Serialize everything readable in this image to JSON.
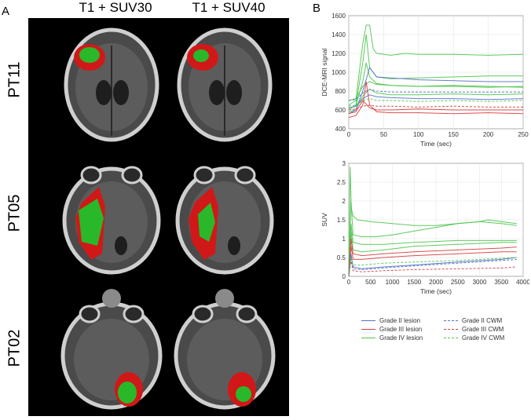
{
  "panels": {
    "a": "A",
    "b": "B"
  },
  "columns": [
    "T1 + SUV30",
    "T1 + SUV40"
  ],
  "rows": [
    "PT11",
    "PT05",
    "PT02"
  ],
  "colors": {
    "grade2": "#5470c6",
    "grade3": "#d63c3c",
    "grade4": "#4cc44c",
    "tumor_red": "#d11818",
    "tumor_green": "#29b829"
  },
  "legend": [
    {
      "label": "Grade II lesion",
      "color": "#5470c6",
      "style": "solid"
    },
    {
      "label": "Grade III lesion",
      "color": "#d63c3c",
      "style": "solid"
    },
    {
      "label": "Grade IV lesion",
      "color": "#4cc44c",
      "style": "solid"
    },
    {
      "label": "Grade II CWM",
      "color": "#5470c6",
      "style": "dashed"
    },
    {
      "label": "Grade III CWM",
      "color": "#d63c3c",
      "style": "dashed"
    },
    {
      "label": "Grade IV CWM",
      "color": "#4cc44c",
      "style": "dashed"
    }
  ],
  "chart_data": [
    {
      "type": "line",
      "xlabel": "Time (sec)",
      "ylabel": "DCE-MRI signal",
      "xlim": [
        0,
        250
      ],
      "ylim": [
        400,
        1600
      ],
      "xticks": [
        0,
        50,
        100,
        150,
        200,
        250
      ],
      "yticks": [
        400,
        600,
        800,
        1000,
        1200,
        1400,
        1600
      ],
      "grid": true,
      "series": [
        {
          "grade": "IV",
          "kind": "lesion",
          "x": [
            0,
            10,
            20,
            25,
            30,
            35,
            40,
            60,
            80,
            100,
            150,
            200,
            250
          ],
          "y": [
            650,
            700,
            1300,
            1500,
            1500,
            1250,
            1200,
            1180,
            1200,
            1190,
            1190,
            1180,
            1190
          ]
        },
        {
          "grade": "IV",
          "kind": "lesion",
          "x": [
            0,
            10,
            20,
            25,
            30,
            40,
            60,
            100,
            150,
            200,
            250
          ],
          "y": [
            600,
            650,
            1100,
            1400,
            1050,
            950,
            930,
            940,
            950,
            960,
            960
          ]
        },
        {
          "grade": "IV",
          "kind": "lesion",
          "x": [
            0,
            10,
            20,
            25,
            30,
            40,
            60,
            100,
            150,
            200,
            250
          ],
          "y": [
            620,
            640,
            900,
            1100,
            950,
            880,
            860,
            850,
            860,
            850,
            840
          ]
        },
        {
          "grade": "IV",
          "kind": "lesion",
          "x": [
            0,
            10,
            20,
            30,
            40,
            60,
            100,
            150,
            200,
            250
          ],
          "y": [
            580,
            600,
            750,
            820,
            780,
            760,
            760,
            770,
            760,
            770
          ]
        },
        {
          "grade": "IV",
          "kind": "lesion",
          "x": [
            0,
            10,
            20,
            30,
            40,
            60,
            100,
            150,
            200,
            250
          ],
          "y": [
            700,
            720,
            850,
            900,
            870,
            860,
            850,
            850,
            840,
            850
          ]
        },
        {
          "grade": "II",
          "kind": "lesion",
          "x": [
            0,
            10,
            20,
            30,
            40,
            60,
            100,
            150,
            200,
            250
          ],
          "y": [
            560,
            600,
            800,
            1050,
            950,
            940,
            920,
            910,
            900,
            900
          ]
        },
        {
          "grade": "II",
          "kind": "lesion",
          "x": [
            0,
            10,
            20,
            30,
            40,
            60,
            100,
            150,
            200,
            250
          ],
          "y": [
            620,
            640,
            720,
            760,
            740,
            730,
            720,
            720,
            710,
            720
          ]
        },
        {
          "grade": "III",
          "kind": "lesion",
          "x": [
            0,
            10,
            20,
            25,
            30,
            40,
            60,
            100,
            150,
            200,
            250
          ],
          "y": [
            520,
            540,
            650,
            900,
            650,
            580,
            570,
            570,
            560,
            570,
            560
          ]
        },
        {
          "grade": "III",
          "kind": "lesion",
          "x": [
            0,
            10,
            20,
            30,
            40,
            60,
            100,
            150,
            200,
            250
          ],
          "y": [
            560,
            580,
            700,
            620,
            600,
            600,
            610,
            600,
            600,
            600
          ]
        },
        {
          "grade": "II",
          "kind": "CWM",
          "x": [
            0,
            10,
            20,
            30,
            40,
            60,
            100,
            150,
            200,
            250
          ],
          "y": [
            700,
            710,
            780,
            820,
            800,
            790,
            790,
            790,
            790,
            790
          ]
        },
        {
          "grade": "III",
          "kind": "CWM",
          "x": [
            0,
            10,
            20,
            30,
            40,
            60,
            100,
            150,
            200,
            250
          ],
          "y": [
            600,
            610,
            640,
            650,
            640,
            640,
            630,
            640,
            630,
            630
          ]
        },
        {
          "grade": "IV",
          "kind": "CWM",
          "x": [
            0,
            10,
            20,
            30,
            40,
            60,
            100,
            150,
            200,
            250
          ],
          "y": [
            640,
            650,
            700,
            720,
            700,
            700,
            690,
            700,
            690,
            700
          ]
        }
      ]
    },
    {
      "type": "line",
      "xlabel": "Time (sec)",
      "ylabel": "SUV",
      "xlim": [
        0,
        4000
      ],
      "ylim": [
        0,
        3
      ],
      "xticks": [
        0,
        500,
        1000,
        1500,
        2000,
        2500,
        3000,
        3500,
        4000
      ],
      "yticks": [
        0,
        0.5,
        1,
        1.5,
        2,
        2.5,
        3
      ],
      "grid": true,
      "series": [
        {
          "grade": "IV",
          "kind": "lesion",
          "x": [
            0,
            30,
            60,
            100,
            200,
            500,
            1000,
            1500,
            2000,
            2500,
            3000,
            3500,
            3850
          ],
          "y": [
            0,
            2.9,
            1.8,
            1.6,
            1.5,
            1.45,
            1.4,
            1.35,
            1.35,
            1.4,
            1.45,
            1.4,
            1.35
          ]
        },
        {
          "grade": "IV",
          "kind": "lesion",
          "x": [
            0,
            50,
            100,
            300,
            600,
            1000,
            1500,
            2000,
            2500,
            3000,
            3200,
            3500,
            3850
          ],
          "y": [
            0,
            2.0,
            1.1,
            1.05,
            1.05,
            1.1,
            1.2,
            1.3,
            1.4,
            1.45,
            1.5,
            1.45,
            1.4
          ]
        },
        {
          "grade": "IV",
          "kind": "lesion",
          "x": [
            0,
            50,
            100,
            300,
            800,
            1500,
            2500,
            3500,
            3850
          ],
          "y": [
            0,
            1.4,
            0.9,
            0.85,
            0.85,
            0.9,
            0.95,
            0.95,
            0.95
          ]
        },
        {
          "grade": "IV",
          "kind": "lesion",
          "x": [
            0,
            50,
            100,
            300,
            800,
            1500,
            2500,
            3500,
            3850
          ],
          "y": [
            0,
            1.2,
            0.7,
            0.65,
            0.7,
            0.8,
            0.85,
            0.9,
            0.9
          ]
        },
        {
          "grade": "III",
          "kind": "lesion",
          "x": [
            0,
            50,
            100,
            300,
            800,
            1500,
            2500,
            3500,
            3850
          ],
          "y": [
            0,
            1.0,
            0.6,
            0.55,
            0.6,
            0.65,
            0.7,
            0.75,
            0.78
          ]
        },
        {
          "grade": "III",
          "kind": "lesion",
          "x": [
            0,
            50,
            100,
            300,
            800,
            1500,
            2500,
            3500,
            3850
          ],
          "y": [
            0,
            0.8,
            0.45,
            0.45,
            0.5,
            0.55,
            0.6,
            0.65,
            0.65
          ]
        },
        {
          "grade": "II",
          "kind": "lesion",
          "x": [
            0,
            50,
            100,
            300,
            800,
            1500,
            2500,
            3500,
            3850
          ],
          "y": [
            0,
            0.6,
            0.25,
            0.2,
            0.25,
            0.3,
            0.38,
            0.45,
            0.5
          ]
        },
        {
          "grade": "II",
          "kind": "CWM",
          "x": [
            0,
            50,
            100,
            300,
            800,
            1500,
            2500,
            3500,
            3850
          ],
          "y": [
            0,
            0.5,
            0.2,
            0.18,
            0.22,
            0.28,
            0.35,
            0.42,
            0.45
          ]
        },
        {
          "grade": "III",
          "kind": "CWM",
          "x": [
            0,
            50,
            100,
            300,
            800,
            1500,
            2500,
            3500,
            3850
          ],
          "y": [
            0,
            0.4,
            0.15,
            0.12,
            0.15,
            0.18,
            0.2,
            0.22,
            0.25
          ]
        },
        {
          "grade": "IV",
          "kind": "CWM",
          "x": [
            0,
            50,
            100,
            300,
            800,
            1500,
            2500,
            3500,
            3850
          ],
          "y": [
            0,
            0.5,
            0.3,
            0.3,
            0.35,
            0.38,
            0.42,
            0.48,
            0.5
          ]
        }
      ]
    }
  ]
}
